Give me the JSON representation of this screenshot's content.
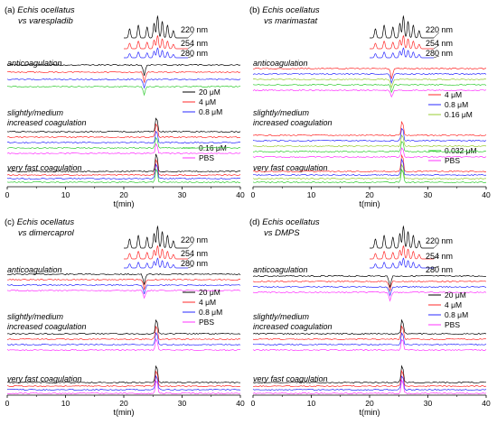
{
  "x_axis": {
    "label": "t(min)",
    "ticks": [
      0,
      10,
      20,
      30,
      40
    ],
    "range": [
      0,
      40
    ]
  },
  "colors": {
    "black": "#000000",
    "red": "#ff2a2a",
    "blue": "#2a2aff",
    "magenta": "#ff33ff",
    "green": "#33cc33"
  },
  "panels": [
    {
      "id": "a",
      "title_prefix": "(a) ",
      "species": "Echis ocellatus",
      "vs_prefix": "vs ",
      "drug": "varespladib",
      "uv_legend": [
        "220 nm",
        "254 nm",
        "280 nm"
      ],
      "section_labels": {
        "anticoagulation": "anticoagulation",
        "slight_line1": "slightly/medium",
        "slight_line2": "increased coagulation",
        "fast": "very fast coagulation"
      },
      "conc_legend": [
        {
          "label": "20 μM",
          "color": "#000000"
        },
        {
          "label": "4 μM",
          "color": "#ff2a2a"
        },
        {
          "label": "0.8 μM",
          "color": "#2a2aff"
        },
        {
          "label": "0.16 μM",
          "color": "#33cc33"
        },
        {
          "label": "PBS",
          "color": "#ff33ff"
        }
      ]
    },
    {
      "id": "b",
      "title_prefix": "(b) ",
      "species": "Echis ocellatus",
      "vs_prefix": "vs ",
      "drug": "marimastat",
      "uv_legend": [
        "220 nm",
        "254 nm",
        "280 nm"
      ],
      "section_labels": {
        "anticoagulation": "anticoagulation",
        "slight_line1": "slightly/medium",
        "slight_line2": "increased coagulation",
        "fast": "very fast coagulation"
      },
      "conc_legend": [
        {
          "label": "4 μM",
          "color": "#ff2a2a"
        },
        {
          "label": "0.8 μM",
          "color": "#2a2aff"
        },
        {
          "label": "0.16 μM",
          "color": "#9acd32"
        },
        {
          "label": "0.032 μM",
          "color": "#33cc33"
        },
        {
          "label": "PBS",
          "color": "#ff33ff"
        }
      ]
    },
    {
      "id": "c",
      "title_prefix": "(c) ",
      "species": "Echis ocellatus",
      "vs_prefix": "vs ",
      "drug": "dimercaprol",
      "uv_legend": [
        "220 nm",
        "254 nm",
        "280 nm"
      ],
      "section_labels": {
        "anticoagulation": "anticoagulation",
        "slight_line1": "slightly/medium",
        "slight_line2": "increased coagulation",
        "fast": "very fast coagulation"
      },
      "conc_legend": [
        {
          "label": "20 μM",
          "color": "#000000"
        },
        {
          "label": "4 μM",
          "color": "#ff2a2a"
        },
        {
          "label": "0.8 μM",
          "color": "#2a2aff"
        },
        {
          "label": "PBS",
          "color": "#ff33ff"
        }
      ]
    },
    {
      "id": "d",
      "title_prefix": "(d) ",
      "species": "Echis ocellatus",
      "vs_prefix": "vs ",
      "drug": "DMPS",
      "uv_legend": [
        "220 nm",
        "254 nm",
        "280 nm"
      ],
      "section_labels": {
        "anticoagulation": "anticoagulation",
        "slight_line1": "slightly/medium",
        "slight_line2": "increased coagulation",
        "fast": "very fast coagulation"
      },
      "conc_legend": [
        {
          "label": "20 μM",
          "color": "#000000"
        },
        {
          "label": "4 μM",
          "color": "#ff2a2a"
        },
        {
          "label": "0.8 μM",
          "color": "#2a2aff"
        },
        {
          "label": "PBS",
          "color": "#ff33ff"
        }
      ]
    }
  ],
  "chart_data": [
    {
      "type": "line",
      "panel": "a",
      "x_range": [
        0,
        40
      ],
      "uv_peaks_min": [
        21,
        22.5,
        24,
        25.2,
        25.8,
        26.6,
        27.5,
        28.5
      ],
      "anticoagulation_peak_min": 23.5,
      "coagulation_peak_min": 25.6
    },
    {
      "type": "line",
      "panel": "b",
      "x_range": [
        0,
        40
      ],
      "uv_peaks_min": [
        21,
        22.5,
        24,
        25.2,
        25.8,
        26.6,
        27.5,
        28.5
      ],
      "anticoagulation_peak_min": 23.8,
      "coagulation_peak_min": 25.6
    },
    {
      "type": "line",
      "panel": "c",
      "x_range": [
        0,
        40
      ],
      "uv_peaks_min": [
        21,
        22.5,
        24,
        25.2,
        25.8,
        26.6,
        27.5,
        28.5
      ],
      "anticoagulation_peak_min": 23.5,
      "coagulation_peak_min": 25.6
    },
    {
      "type": "line",
      "panel": "d",
      "x_range": [
        0,
        40
      ],
      "uv_peaks_min": [
        21,
        22.5,
        24,
        25.2,
        25.8,
        26.6,
        27.5,
        28.5
      ],
      "anticoagulation_peak_min": 23.5,
      "coagulation_peak_min": 25.6
    }
  ]
}
